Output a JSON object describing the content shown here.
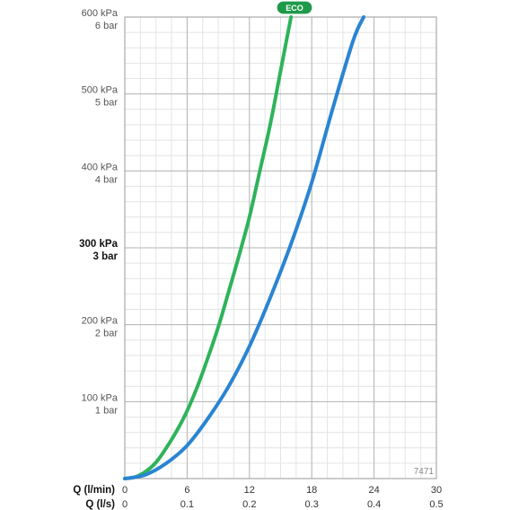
{
  "chart_data": {
    "type": "line",
    "title": "",
    "xlabel_primary": "Q (l/min)",
    "xlabel_secondary": "Q (l/s)",
    "ylabel": "",
    "xlim": [
      0,
      30
    ],
    "ylim": [
      0,
      600
    ],
    "x_ticks_lmin": [
      "0",
      "6",
      "12",
      "18",
      "24",
      "30"
    ],
    "x_ticks_ls": [
      "0",
      "0.1",
      "0.2",
      "0.3",
      "0.4",
      "0.5"
    ],
    "y_ticks": [
      {
        "value": 100,
        "kpa": "100 kPa",
        "bar": "1 bar",
        "bold": false
      },
      {
        "value": 200,
        "kpa": "200 kPa",
        "bar": "2 bar",
        "bold": false
      },
      {
        "value": 300,
        "kpa": "300 kPa",
        "bar": "3 bar",
        "bold": true
      },
      {
        "value": 400,
        "kpa": "400 kPa",
        "bar": "4 bar",
        "bold": false
      },
      {
        "value": 500,
        "kpa": "500 kPa",
        "bar": "5 bar",
        "bold": false
      },
      {
        "value": 600,
        "kpa": "600 kPa",
        "bar": "6 bar",
        "bold": false
      }
    ],
    "grid": true,
    "badge": "ECO",
    "code": "7471",
    "series": [
      {
        "color": "#2eb35a",
        "x": [
          0,
          1,
          2,
          3,
          4,
          5,
          6,
          7,
          8,
          9,
          10,
          11,
          12,
          13,
          14,
          15,
          16
        ],
        "y": [
          0,
          2,
          9,
          21,
          40,
          62,
          88,
          120,
          157,
          197,
          243,
          290,
          340,
          400,
          460,
          530,
          600
        ]
      },
      {
        "color": "#2a84d2",
        "x": [
          0,
          2,
          4,
          6,
          8,
          10,
          12,
          14,
          16,
          18,
          20,
          22,
          23
        ],
        "y": [
          0,
          5,
          20,
          43,
          78,
          120,
          172,
          235,
          305,
          385,
          480,
          570,
          600
        ]
      }
    ]
  }
}
